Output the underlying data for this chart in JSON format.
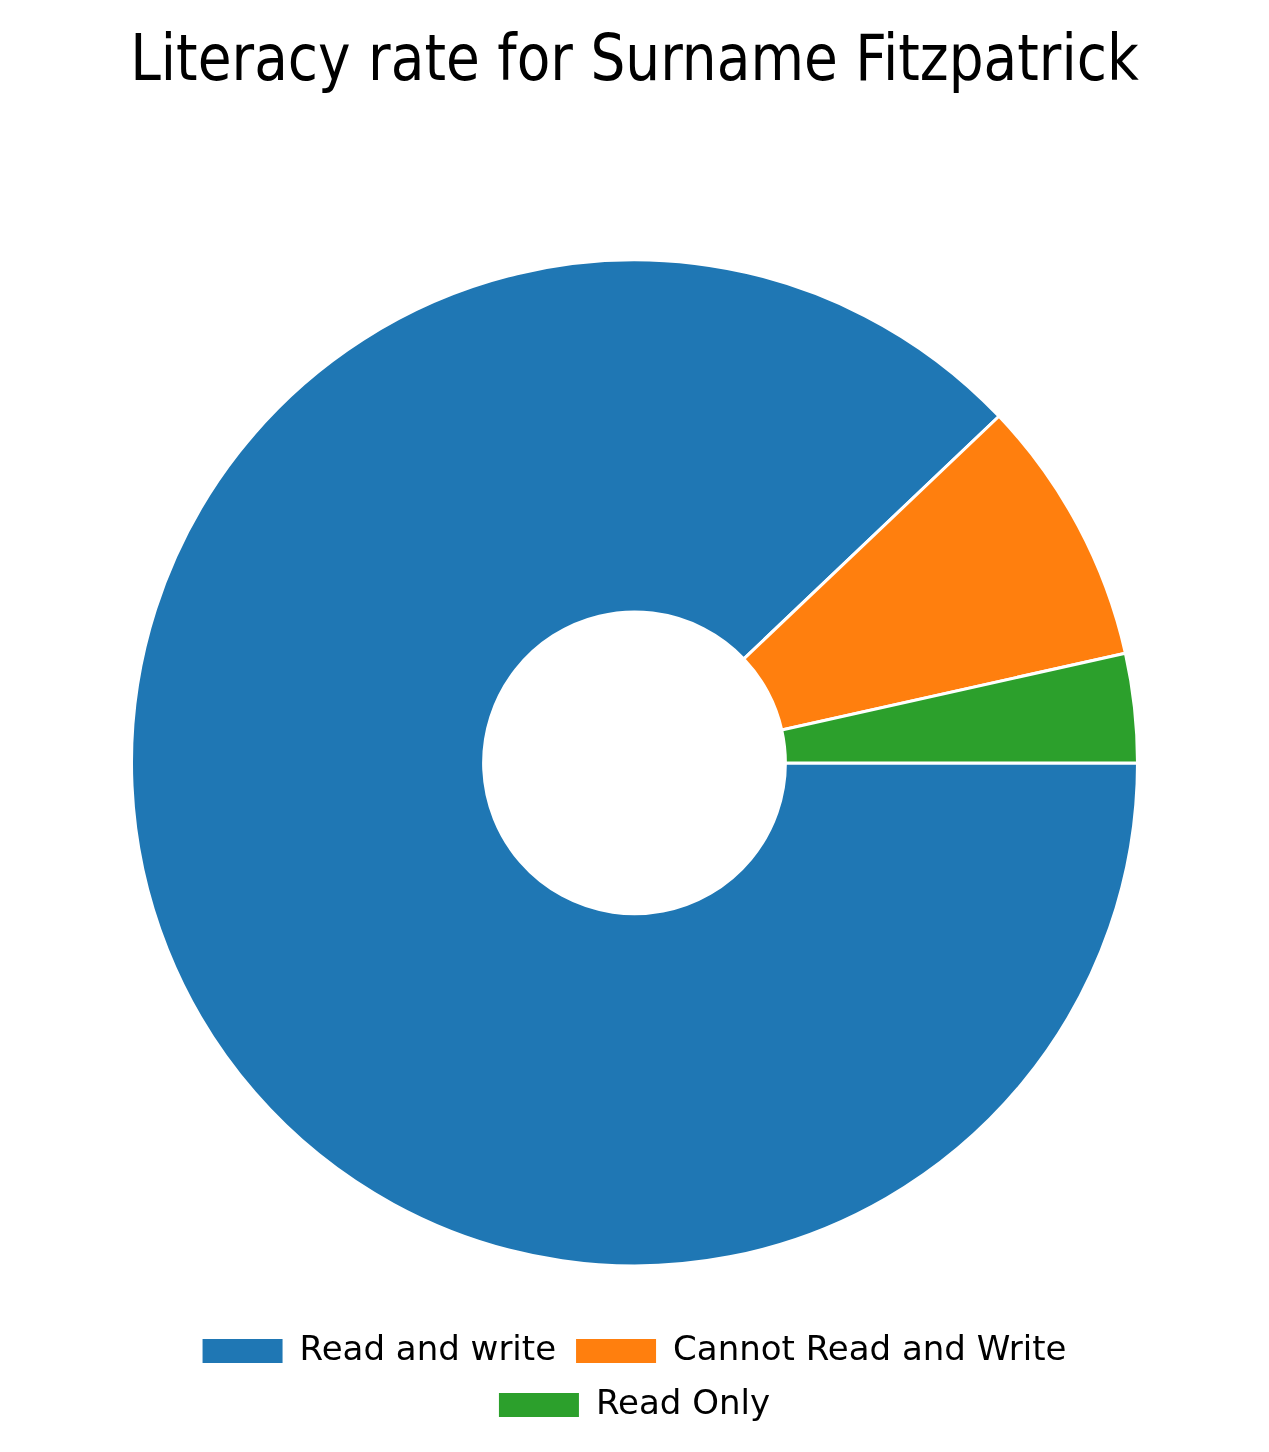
{
  "chart_data": {
    "type": "donut",
    "title": "Literacy rate for Surname Fitzpatrick",
    "categories": [
      "Read and write",
      "Cannot Read and Write",
      "Read Only"
    ],
    "values": [
      87.9,
      8.6,
      3.5
    ],
    "colors": [
      "#1f77b4",
      "#ff7f0e",
      "#2ca02c"
    ],
    "legend": "bottom"
  }
}
